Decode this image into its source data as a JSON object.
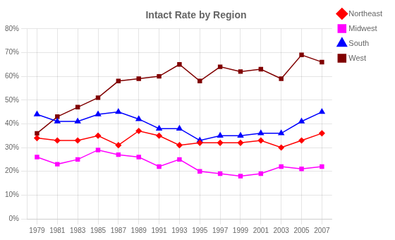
{
  "chart_data": {
    "type": "line",
    "title": "Intact Rate by Region",
    "x": [
      1979,
      1981,
      1983,
      1985,
      1987,
      1989,
      1991,
      1993,
      1995,
      1997,
      1999,
      2001,
      2003,
      2005,
      2007
    ],
    "series": [
      {
        "name": "Northeast",
        "color": "#FF0000",
        "marker": "diamond",
        "values": [
          0.34,
          0.33,
          0.33,
          0.35,
          0.31,
          0.37,
          0.35,
          0.31,
          0.32,
          0.32,
          0.32,
          0.33,
          0.3,
          0.33,
          0.36
        ]
      },
      {
        "name": "Midwest",
        "color": "#FF00FF",
        "marker": "square",
        "values": [
          0.26,
          0.23,
          0.25,
          0.29,
          0.27,
          0.26,
          0.22,
          0.25,
          0.2,
          0.19,
          0.18,
          0.19,
          0.22,
          0.21,
          0.22
        ]
      },
      {
        "name": "South",
        "color": "#0000FF",
        "marker": "triangle",
        "values": [
          0.44,
          0.41,
          0.41,
          0.44,
          0.45,
          0.42,
          0.38,
          0.38,
          0.33,
          0.35,
          0.35,
          0.36,
          0.36,
          0.41,
          0.45
        ]
      },
      {
        "name": "West",
        "color": "#800000",
        "marker": "square",
        "values": [
          0.36,
          0.43,
          0.47,
          0.51,
          0.58,
          0.59,
          0.6,
          0.65,
          0.58,
          0.64,
          0.62,
          0.63,
          0.59,
          0.69,
          0.66
        ]
      }
    ],
    "xlim": [
      1978,
      2008
    ],
    "xticks": [
      1979,
      1981,
      1983,
      1985,
      1987,
      1989,
      1991,
      1993,
      1995,
      1997,
      1999,
      2001,
      2003,
      2005,
      2007
    ],
    "ylim": [
      0.0,
      0.8
    ],
    "yticks": [
      {
        "value": 0.0,
        "label": "0%"
      },
      {
        "value": 0.1,
        "label": "10%"
      },
      {
        "value": 0.2,
        "label": "20%"
      },
      {
        "value": 0.3,
        "label": "30%"
      },
      {
        "value": 0.4,
        "label": "40%"
      },
      {
        "value": 0.5,
        "label": "50%"
      },
      {
        "value": 0.6,
        "label": "60%"
      },
      {
        "value": 0.7,
        "label": "70%"
      },
      {
        "value": 0.8,
        "label": "80%"
      }
    ],
    "grid": true,
    "legend": "right"
  }
}
